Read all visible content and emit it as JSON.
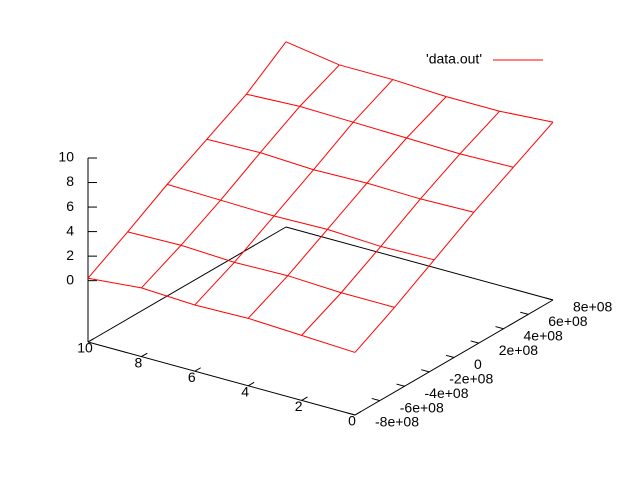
{
  "chart_data": {
    "type": "surface",
    "series": [
      {
        "name": "'data.out'",
        "color": "#ff0000"
      }
    ],
    "legend": "top-right",
    "x": [
      0,
      2,
      4,
      6,
      8,
      10
    ],
    "y": [
      -800000000,
      -480000000,
      -160000000,
      160000000,
      480000000,
      800000000
    ],
    "z": [
      [
        0.1,
        1.9,
        3.9,
        5.9,
        7.7,
        9.5
      ],
      [
        0.3,
        1.9,
        3.8,
        5.8,
        7.6,
        9.2
      ],
      [
        0.5,
        2.1,
        4.0,
        5.9,
        7.7,
        9.2
      ],
      [
        0.4,
        2.0,
        3.9,
        5.8,
        7.8,
        9.4
      ],
      [
        0.6,
        2.2,
        4.0,
        6.0,
        7.9,
        9.4
      ],
      [
        0.2,
        2.1,
        4.1,
        5.9,
        7.7,
        10.1
      ]
    ],
    "xlim": [
      0,
      10
    ],
    "xticks": [
      0,
      2,
      4,
      6,
      8,
      10
    ],
    "ylim": [
      -800000000,
      800000000
    ],
    "yticks": [
      {
        "value": -800000000,
        "label": "-8e+08"
      },
      {
        "value": -600000000,
        "label": "-6e+08"
      },
      {
        "value": -400000000,
        "label": "-4e+08"
      },
      {
        "value": -200000000,
        "label": "-2e+08"
      },
      0,
      {
        "value": 200000000,
        "label": "2e+08"
      },
      {
        "value": 400000000,
        "label": "4e+08"
      },
      {
        "value": 600000000,
        "label": "6e+08"
      },
      {
        "value": 800000000,
        "label": "8e+08"
      }
    ],
    "zlim": [
      -5,
      10
    ],
    "zticks": [
      0,
      2,
      4,
      6,
      8,
      10
    ]
  }
}
